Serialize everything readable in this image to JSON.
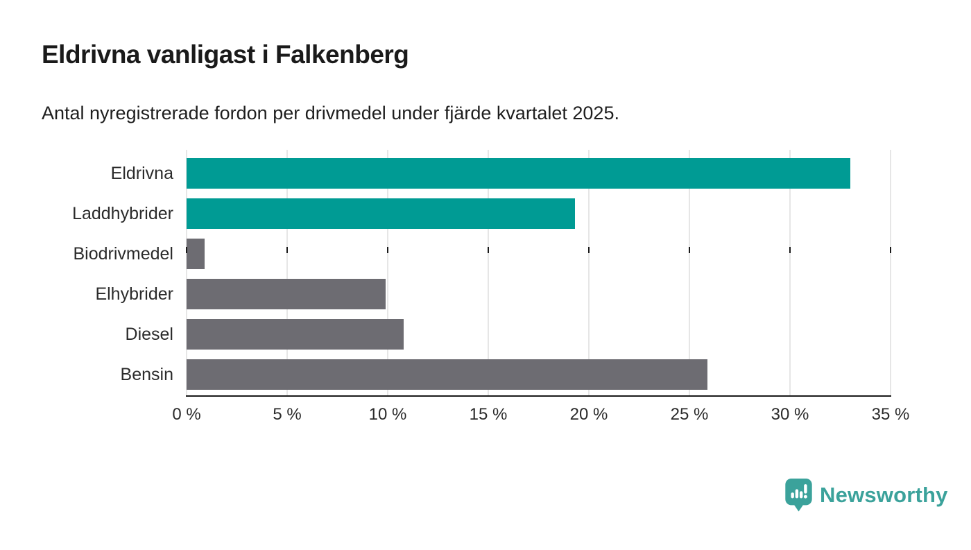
{
  "header": {
    "title": "Eldrivna vanligast i Falkenberg",
    "subtitle": "Antal nyregistrerade fordon per drivmedel under fjärde kvartalet 2025."
  },
  "chart_data": {
    "type": "bar",
    "orientation": "horizontal",
    "title": "Eldrivna vanligast i Falkenberg",
    "subtitle": "Antal nyregistrerade fordon per drivmedel under fjärde kvartalet 2025.",
    "categories": [
      "Eldrivna",
      "Laddhybrider",
      "Biodrivmedel",
      "Elhybrider",
      "Diesel",
      "Bensin"
    ],
    "values": [
      33.0,
      19.3,
      0.9,
      9.9,
      10.8,
      25.9
    ],
    "unit": "%",
    "xlim": [
      0,
      35
    ],
    "x_tick_step": 5,
    "x_tick_values": [
      0,
      5,
      10,
      15,
      20,
      25,
      30,
      35
    ],
    "x_tick_labels": [
      "0 %",
      "5 %",
      "10 %",
      "15 %",
      "20 %",
      "25 %",
      "30 %",
      "35 %"
    ],
    "grid": "vertical-only",
    "legend": "none",
    "bar_colors": [
      "#009b94",
      "#009b94",
      "#6d6c72",
      "#6d6c72",
      "#6d6c72",
      "#6d6c72"
    ],
    "highlight_color": "#009b94",
    "default_color": "#6d6c72",
    "gridline_color": "#e6e6e6",
    "axis_color": "#1a1a1a"
  },
  "branding": {
    "logo_text": "Newsworthy",
    "logo_color": "#3ba29b",
    "logo_icon": "newsworthy-pin-barchart-icon"
  }
}
